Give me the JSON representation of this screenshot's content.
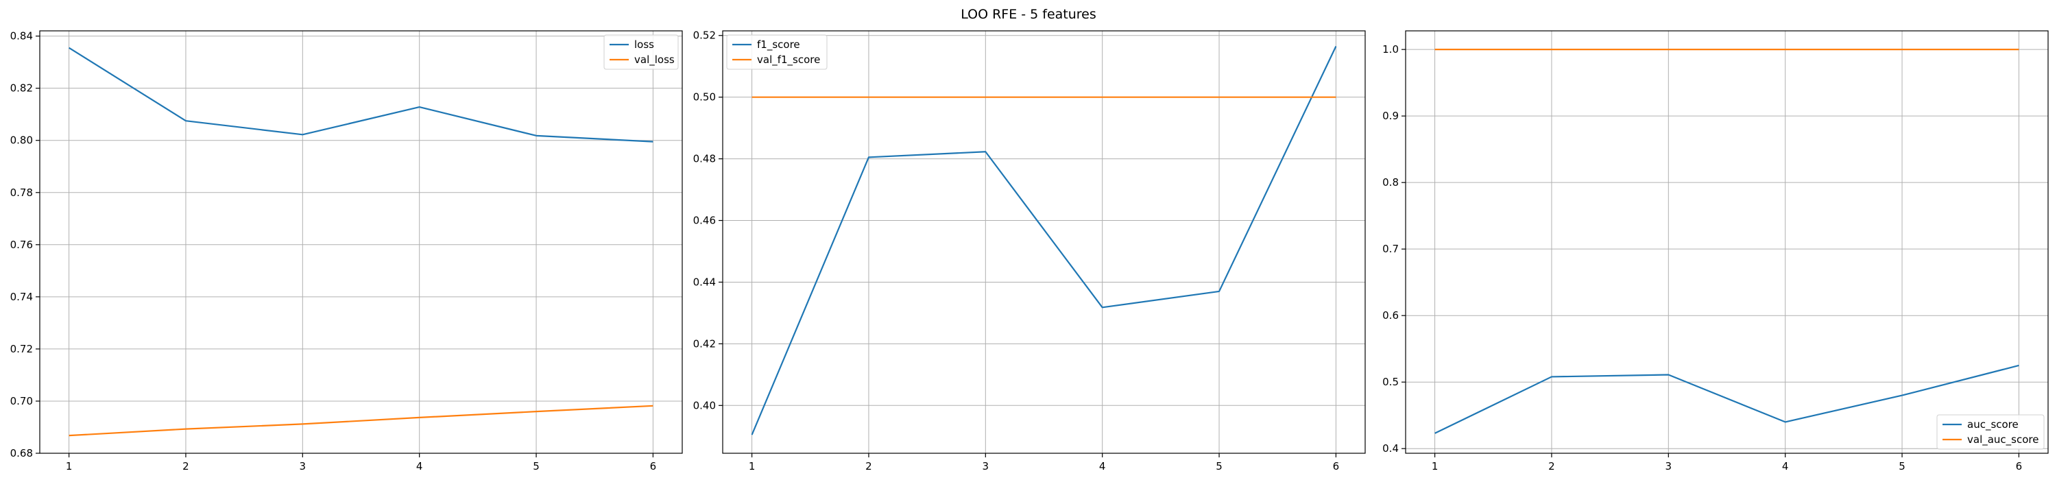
{
  "figure": {
    "suptitle": "LOO RFE - 5 features"
  },
  "colors": {
    "train": "#1f77b4",
    "val": "#ff7f0e"
  },
  "chart_data": [
    {
      "type": "line",
      "x": [
        1,
        2,
        3,
        4,
        5,
        6
      ],
      "xticks": [
        1,
        2,
        3,
        4,
        5,
        6
      ],
      "ylim": [
        0.68,
        0.842
      ],
      "yticks": [
        0.68,
        0.7,
        0.72,
        0.74,
        0.76,
        0.78,
        0.8,
        0.82,
        0.84
      ],
      "ytick_labels": [
        "0.68",
        "0.70",
        "0.72",
        "0.74",
        "0.76",
        "0.78",
        "0.80",
        "0.82",
        "0.84"
      ],
      "grid": true,
      "legend_position": "top-right",
      "series": [
        {
          "name": "loss",
          "color": "#1f77b4",
          "values": [
            0.8355,
            0.8075,
            0.8022,
            0.8128,
            0.8018,
            0.7995
          ]
        },
        {
          "name": "val_loss",
          "color": "#ff7f0e",
          "values": [
            0.6868,
            0.6893,
            0.6912,
            0.6937,
            0.696,
            0.6982
          ]
        }
      ]
    },
    {
      "type": "line",
      "x": [
        1,
        2,
        3,
        4,
        5,
        6
      ],
      "xticks": [
        1,
        2,
        3,
        4,
        5,
        6
      ],
      "ylim": [
        0.3845,
        0.5215
      ],
      "yticks": [
        0.4,
        0.42,
        0.44,
        0.46,
        0.48,
        0.5,
        0.52
      ],
      "ytick_labels": [
        "0.40",
        "0.42",
        "0.44",
        "0.46",
        "0.48",
        "0.50",
        "0.52"
      ],
      "grid": true,
      "legend_position": "top-left",
      "series": [
        {
          "name": "f1_score",
          "color": "#1f77b4",
          "values": [
            0.3905,
            0.4805,
            0.4823,
            0.4318,
            0.437,
            0.5165
          ]
        },
        {
          "name": "val_f1_score",
          "color": "#ff7f0e",
          "values": [
            0.5,
            0.5,
            0.5,
            0.5,
            0.5,
            0.5
          ]
        }
      ]
    },
    {
      "type": "line",
      "x": [
        1,
        2,
        3,
        4,
        5,
        6
      ],
      "xticks": [
        1,
        2,
        3,
        4,
        5,
        6
      ],
      "ylim": [
        0.393,
        1.028
      ],
      "yticks": [
        0.4,
        0.5,
        0.6,
        0.7,
        0.8,
        0.9,
        1.0
      ],
      "ytick_labels": [
        "0.4",
        "0.5",
        "0.6",
        "0.7",
        "0.8",
        "0.9",
        "1.0"
      ],
      "grid": true,
      "legend_position": "bottom-right",
      "series": [
        {
          "name": "auc_score",
          "color": "#1f77b4",
          "values": [
            0.423,
            0.508,
            0.511,
            0.44,
            0.48,
            0.525
          ]
        },
        {
          "name": "val_auc_score",
          "color": "#ff7f0e",
          "values": [
            1.0,
            1.0,
            1.0,
            1.0,
            1.0,
            1.0
          ]
        }
      ]
    }
  ]
}
